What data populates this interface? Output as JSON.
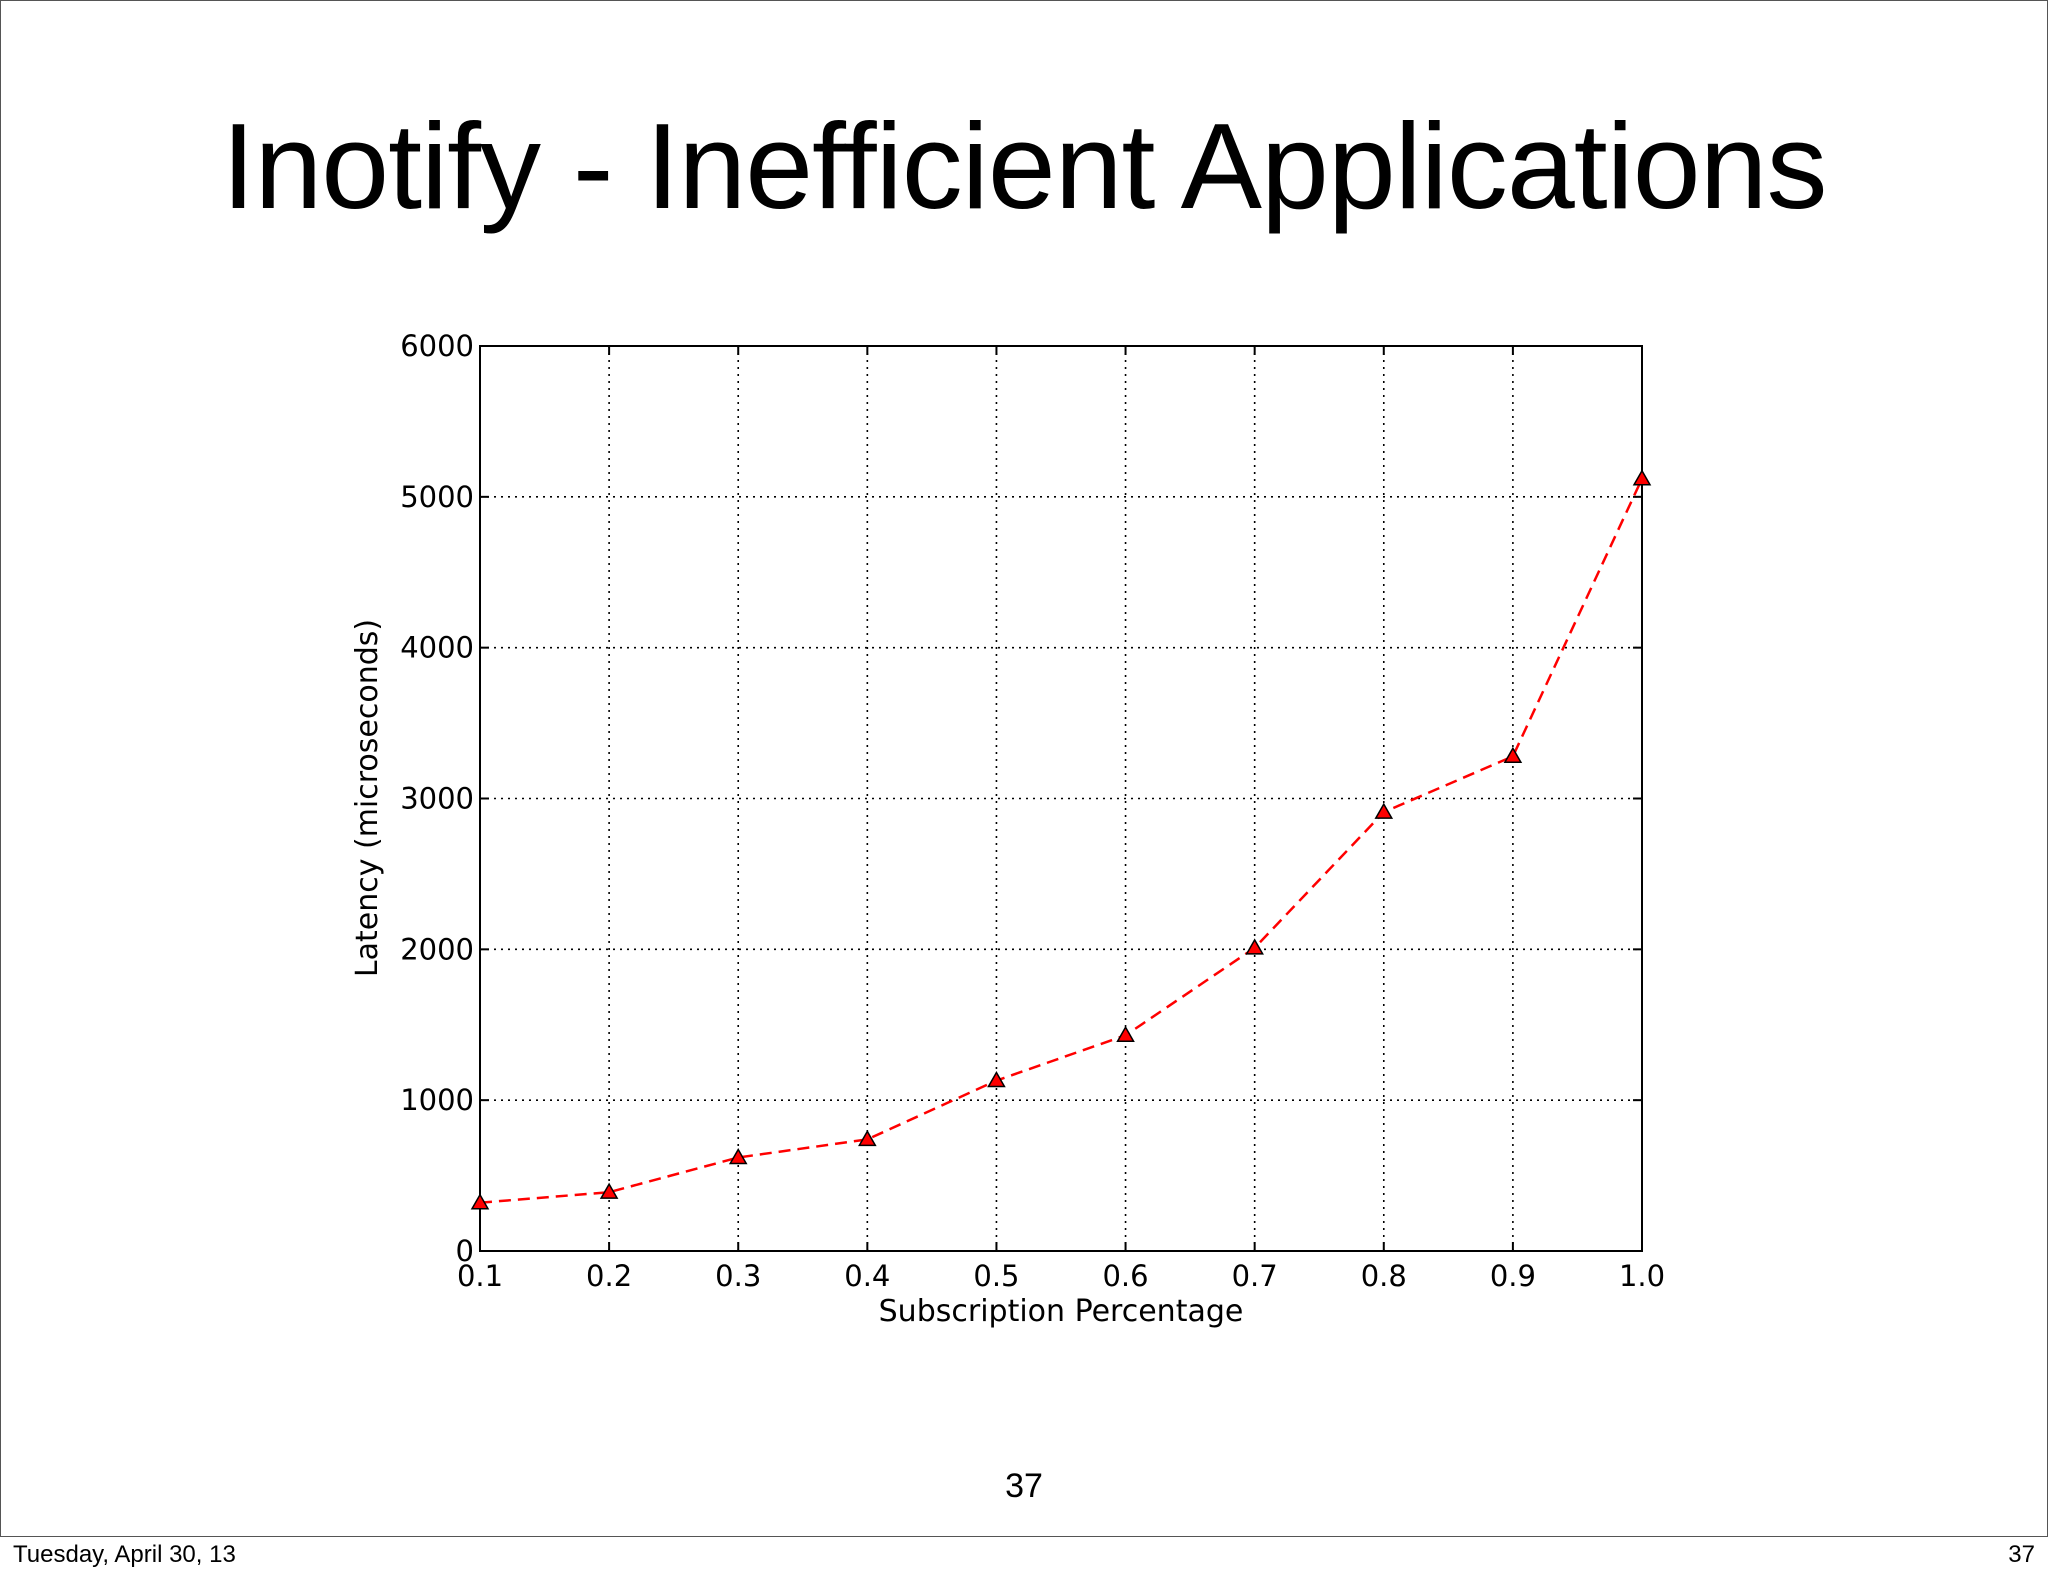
{
  "slide": {
    "title": "Inotify - Inefficient Applications",
    "page_number": "37"
  },
  "footer": {
    "date": "Tuesday, April 30, 13",
    "page_number": "37"
  },
  "chart_data": {
    "type": "line",
    "xlabel": "Subscription Percentage",
    "ylabel": "Latency (microseconds)",
    "xlim": [
      0.1,
      1.0
    ],
    "ylim": [
      0,
      6000
    ],
    "xticks": [
      "0.1",
      "0.2",
      "0.3",
      "0.4",
      "0.5",
      "0.6",
      "0.7",
      "0.8",
      "0.9",
      "1.0"
    ],
    "yticks": [
      "0",
      "1000",
      "2000",
      "3000",
      "4000",
      "5000",
      "6000"
    ],
    "grid": true,
    "series": [
      {
        "color": "#ff0000",
        "marker": "triangle",
        "line_style": "dashed",
        "x": [
          0.1,
          0.2,
          0.3,
          0.4,
          0.5,
          0.6,
          0.7,
          0.8,
          0.9,
          1.0
        ],
        "y": [
          320,
          390,
          620,
          740,
          1130,
          1430,
          2010,
          2910,
          3280,
          5120
        ]
      }
    ]
  }
}
